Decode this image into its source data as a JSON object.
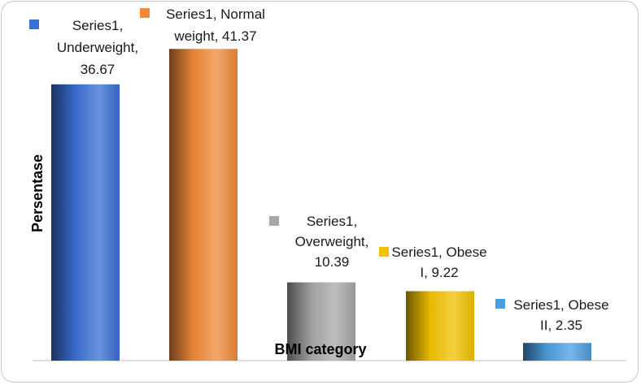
{
  "chart_data": {
    "type": "bar",
    "categories": [
      "Underweight",
      "Normal weight",
      "Overweight",
      "Obese I",
      "Obese II"
    ],
    "series": [
      {
        "name": "Series1",
        "values": [
          36.67,
          41.37,
          10.39,
          9.22,
          2.35
        ]
      }
    ],
    "ylim": [
      0,
      47
    ],
    "xlabel": "BMI category",
    "ylabel": "Persentase",
    "bar_colors": [
      "#3a6fd4",
      "#f08a3a",
      "#a8a8a8",
      "#f2c200",
      "#4a9ee0"
    ],
    "data_labels": [
      [
        "Series1,",
        "Underweight,",
        "36.67"
      ],
      [
        "Series1, Normal",
        "weight, 41.37"
      ],
      [
        "Series1,",
        "Overweight,",
        "10.39"
      ],
      [
        "Series1, Obese",
        "I, 9.22"
      ],
      [
        "Series1, Obese",
        "II, 2.35"
      ]
    ],
    "grid": false,
    "legend": "none"
  }
}
